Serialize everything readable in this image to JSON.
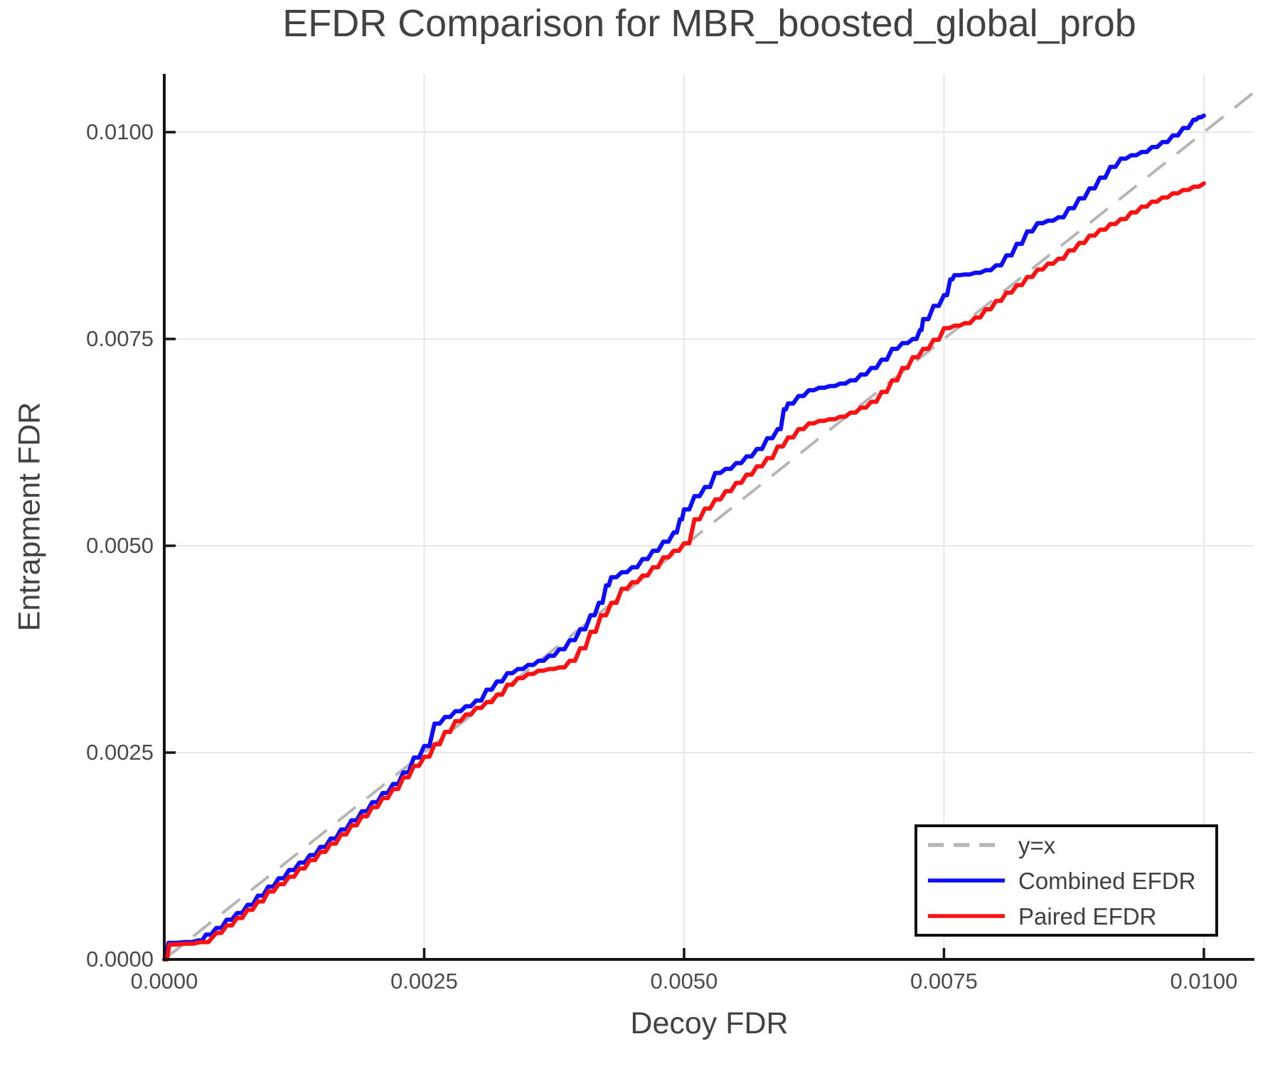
{
  "chart_data": {
    "type": "line",
    "title": "EFDR Comparison for MBR_boosted_global_prob",
    "xlabel": "Decoy FDR",
    "ylabel": "Entrapment FDR",
    "xlim": [
      0,
      0.010486
    ],
    "ylim": [
      0,
      0.010704
    ],
    "grid": true,
    "colors": {
      "grid": "#e7e7e7",
      "spine": "#141414",
      "tick": "#141414",
      "text": "#424242"
    },
    "x_ticks": [
      {
        "value": 0.0,
        "label": "0.0000"
      },
      {
        "value": 0.0025,
        "label": "0.0025"
      },
      {
        "value": 0.005,
        "label": "0.0050"
      },
      {
        "value": 0.0075,
        "label": "0.0075"
      },
      {
        "value": 0.01,
        "label": "0.0100"
      }
    ],
    "y_ticks": [
      {
        "value": 0.0,
        "label": "0.0000"
      },
      {
        "value": 0.0025,
        "label": "0.0025"
      },
      {
        "value": 0.005,
        "label": "0.0050"
      },
      {
        "value": 0.0075,
        "label": "0.0075"
      },
      {
        "value": 0.01,
        "label": "0.0100"
      }
    ],
    "reference_line": {
      "label": "y=x",
      "type": "identity",
      "color": "#b5b5b5",
      "dashed": true
    },
    "legend": {
      "position": "lower right",
      "entries": [
        {
          "label": "y=x",
          "color": "#b5b5b5",
          "dashed": true
        },
        {
          "label": "Combined EFDR",
          "color": "#0d0dfa",
          "dashed": false
        },
        {
          "label": "Paired EFDR",
          "color": "#fa1212",
          "dashed": false
        }
      ]
    },
    "series": [
      {
        "name": "Combined EFDR",
        "color": "#0d0dfa",
        "points": [
          [
            0.0,
            0.0
          ],
          [
            4e-05,
            0.0002
          ],
          [
            0.0002,
            0.00021
          ],
          [
            0.00033,
            0.00023
          ],
          [
            0.0004,
            0.0003
          ],
          [
            0.0005,
            0.00038
          ],
          [
            0.0006,
            0.00048
          ],
          [
            0.0007,
            0.00056
          ],
          [
            0.0008,
            0.00066
          ],
          [
            0.0009,
            0.00077
          ],
          [
            0.001,
            0.00088
          ],
          [
            0.0011,
            0.00098
          ],
          [
            0.0012,
            0.00108
          ],
          [
            0.0013,
            0.00117
          ],
          [
            0.0014,
            0.00126
          ],
          [
            0.0015,
            0.00136
          ],
          [
            0.0016,
            0.00146
          ],
          [
            0.0017,
            0.00157
          ],
          [
            0.0018,
            0.00168
          ],
          [
            0.0019,
            0.00179
          ],
          [
            0.002,
            0.0019
          ],
          [
            0.0021,
            0.00201
          ],
          [
            0.0022,
            0.00212
          ],
          [
            0.0023,
            0.00226
          ],
          [
            0.0024,
            0.00244
          ],
          [
            0.0025,
            0.00258
          ],
          [
            0.0026,
            0.00285
          ],
          [
            0.0027,
            0.00293
          ],
          [
            0.0028,
            0.003
          ],
          [
            0.0029,
            0.00306
          ],
          [
            0.003,
            0.00313
          ],
          [
            0.0031,
            0.00326
          ],
          [
            0.0032,
            0.00336
          ],
          [
            0.0033,
            0.00346
          ],
          [
            0.0034,
            0.00351
          ],
          [
            0.0035,
            0.00356
          ],
          [
            0.0036,
            0.00361
          ],
          [
            0.0037,
            0.00367
          ],
          [
            0.0038,
            0.00375
          ],
          [
            0.0039,
            0.00386
          ],
          [
            0.004,
            0.00399
          ],
          [
            0.0041,
            0.00416
          ],
          [
            0.00418,
            0.00431
          ],
          [
            0.00425,
            0.00452
          ],
          [
            0.0043,
            0.00462
          ],
          [
            0.0044,
            0.00468
          ],
          [
            0.0045,
            0.00474
          ],
          [
            0.0046,
            0.00484
          ],
          [
            0.0047,
            0.00494
          ],
          [
            0.0048,
            0.00505
          ],
          [
            0.0049,
            0.00516
          ],
          [
            0.00496,
            0.00532
          ],
          [
            0.005,
            0.00544
          ],
          [
            0.0051,
            0.0056
          ],
          [
            0.0052,
            0.00571
          ],
          [
            0.0053,
            0.00588
          ],
          [
            0.0054,
            0.00593
          ],
          [
            0.0055,
            0.006
          ],
          [
            0.0056,
            0.00608
          ],
          [
            0.0057,
            0.00617
          ],
          [
            0.0058,
            0.0063
          ],
          [
            0.0059,
            0.00641
          ],
          [
            0.00596,
            0.00665
          ],
          [
            0.006,
            0.00672
          ],
          [
            0.0061,
            0.00681
          ],
          [
            0.0062,
            0.00688
          ],
          [
            0.0063,
            0.00691
          ],
          [
            0.0064,
            0.00693
          ],
          [
            0.0065,
            0.00696
          ],
          [
            0.0066,
            0.007
          ],
          [
            0.0067,
            0.00707
          ],
          [
            0.0068,
            0.00715
          ],
          [
            0.0069,
            0.00725
          ],
          [
            0.007,
            0.00738
          ],
          [
            0.0071,
            0.00745
          ],
          [
            0.0072,
            0.0075
          ],
          [
            0.00727,
            0.00761
          ],
          [
            0.0073,
            0.00774
          ],
          [
            0.0074,
            0.0079
          ],
          [
            0.0075,
            0.00803
          ],
          [
            0.00756,
            0.00822
          ],
          [
            0.0076,
            0.00827
          ],
          [
            0.0077,
            0.00828
          ],
          [
            0.0078,
            0.0083
          ],
          [
            0.0079,
            0.00833
          ],
          [
            0.008,
            0.00839
          ],
          [
            0.0081,
            0.00851
          ],
          [
            0.0082,
            0.00865
          ],
          [
            0.0083,
            0.0088
          ],
          [
            0.0084,
            0.0089
          ],
          [
            0.0085,
            0.00893
          ],
          [
            0.0086,
            0.00897
          ],
          [
            0.0087,
            0.00908
          ],
          [
            0.0088,
            0.0092
          ],
          [
            0.0089,
            0.00932
          ],
          [
            0.009,
            0.00945
          ],
          [
            0.0091,
            0.00958
          ],
          [
            0.0092,
            0.00968
          ],
          [
            0.0093,
            0.00972
          ],
          [
            0.0094,
            0.00976
          ],
          [
            0.0095,
            0.00982
          ],
          [
            0.0096,
            0.00988
          ],
          [
            0.0097,
            0.00996
          ],
          [
            0.0098,
            0.01005
          ],
          [
            0.0099,
            0.01015
          ],
          [
            0.00995,
            0.01018
          ],
          [
            0.01,
            0.0102
          ]
        ]
      },
      {
        "name": "Paired EFDR",
        "color": "#fa1212",
        "points": [
          [
            0.0,
            0.0
          ],
          [
            5e-05,
            0.00018
          ],
          [
            0.0002,
            0.00019
          ],
          [
            0.00035,
            0.00021
          ],
          [
            0.0005,
            0.00032
          ],
          [
            0.0006,
            0.00041
          ],
          [
            0.0007,
            0.0005
          ],
          [
            0.0008,
            0.0006
          ],
          [
            0.0009,
            0.0007
          ],
          [
            0.001,
            0.00082
          ],
          [
            0.0011,
            0.00091
          ],
          [
            0.0012,
            0.001
          ],
          [
            0.0013,
            0.0011
          ],
          [
            0.0014,
            0.0012
          ],
          [
            0.0015,
            0.0013
          ],
          [
            0.0016,
            0.0014
          ],
          [
            0.0017,
            0.00151
          ],
          [
            0.0018,
            0.00162
          ],
          [
            0.0019,
            0.00173
          ],
          [
            0.002,
            0.00184
          ],
          [
            0.0021,
            0.00195
          ],
          [
            0.0022,
            0.00206
          ],
          [
            0.0023,
            0.0022
          ],
          [
            0.0024,
            0.00234
          ],
          [
            0.0025,
            0.00245
          ],
          [
            0.0026,
            0.0026
          ],
          [
            0.0027,
            0.00275
          ],
          [
            0.0028,
            0.00288
          ],
          [
            0.0029,
            0.00296
          ],
          [
            0.003,
            0.00304
          ],
          [
            0.0031,
            0.00311
          ],
          [
            0.0032,
            0.0032
          ],
          [
            0.0033,
            0.00332
          ],
          [
            0.0034,
            0.0034
          ],
          [
            0.0035,
            0.00345
          ],
          [
            0.0036,
            0.00349
          ],
          [
            0.0037,
            0.00351
          ],
          [
            0.0038,
            0.00353
          ],
          [
            0.0039,
            0.00361
          ],
          [
            0.004,
            0.00376
          ],
          [
            0.0041,
            0.00396
          ],
          [
            0.0042,
            0.00416
          ],
          [
            0.0043,
            0.00431
          ],
          [
            0.0044,
            0.00448
          ],
          [
            0.0045,
            0.00456
          ],
          [
            0.0046,
            0.00464
          ],
          [
            0.0047,
            0.00474
          ],
          [
            0.0048,
            0.00486
          ],
          [
            0.0049,
            0.00494
          ],
          [
            0.005,
            0.00503
          ],
          [
            0.0051,
            0.00532
          ],
          [
            0.0052,
            0.00545
          ],
          [
            0.0053,
            0.00556
          ],
          [
            0.0054,
            0.00566
          ],
          [
            0.0055,
            0.00576
          ],
          [
            0.0056,
            0.00586
          ],
          [
            0.0057,
            0.00596
          ],
          [
            0.0058,
            0.00606
          ],
          [
            0.0059,
            0.0062
          ],
          [
            0.006,
            0.00631
          ],
          [
            0.0061,
            0.00641
          ],
          [
            0.0062,
            0.00648
          ],
          [
            0.0063,
            0.00651
          ],
          [
            0.0064,
            0.00653
          ],
          [
            0.0065,
            0.00656
          ],
          [
            0.0066,
            0.00661
          ],
          [
            0.0067,
            0.00667
          ],
          [
            0.0068,
            0.00674
          ],
          [
            0.0069,
            0.00686
          ],
          [
            0.007,
            0.007
          ],
          [
            0.0071,
            0.00715
          ],
          [
            0.0072,
            0.00728
          ],
          [
            0.0073,
            0.00738
          ],
          [
            0.0074,
            0.00749
          ],
          [
            0.0075,
            0.00763
          ],
          [
            0.0076,
            0.00766
          ],
          [
            0.0077,
            0.00769
          ],
          [
            0.0078,
            0.00776
          ],
          [
            0.0079,
            0.00786
          ],
          [
            0.008,
            0.00796
          ],
          [
            0.0081,
            0.00806
          ],
          [
            0.0082,
            0.00815
          ],
          [
            0.0083,
            0.00825
          ],
          [
            0.0084,
            0.00834
          ],
          [
            0.0085,
            0.00841
          ],
          [
            0.0086,
            0.00847
          ],
          [
            0.0087,
            0.00857
          ],
          [
            0.0088,
            0.00866
          ],
          [
            0.0089,
            0.00875
          ],
          [
            0.009,
            0.00882
          ],
          [
            0.0091,
            0.00889
          ],
          [
            0.0092,
            0.00895
          ],
          [
            0.0093,
            0.00903
          ],
          [
            0.0094,
            0.0091
          ],
          [
            0.0095,
            0.00916
          ],
          [
            0.0096,
            0.00921
          ],
          [
            0.0097,
            0.00926
          ],
          [
            0.0098,
            0.0093
          ],
          [
            0.0099,
            0.00934
          ],
          [
            0.01,
            0.00938
          ]
        ]
      }
    ]
  }
}
